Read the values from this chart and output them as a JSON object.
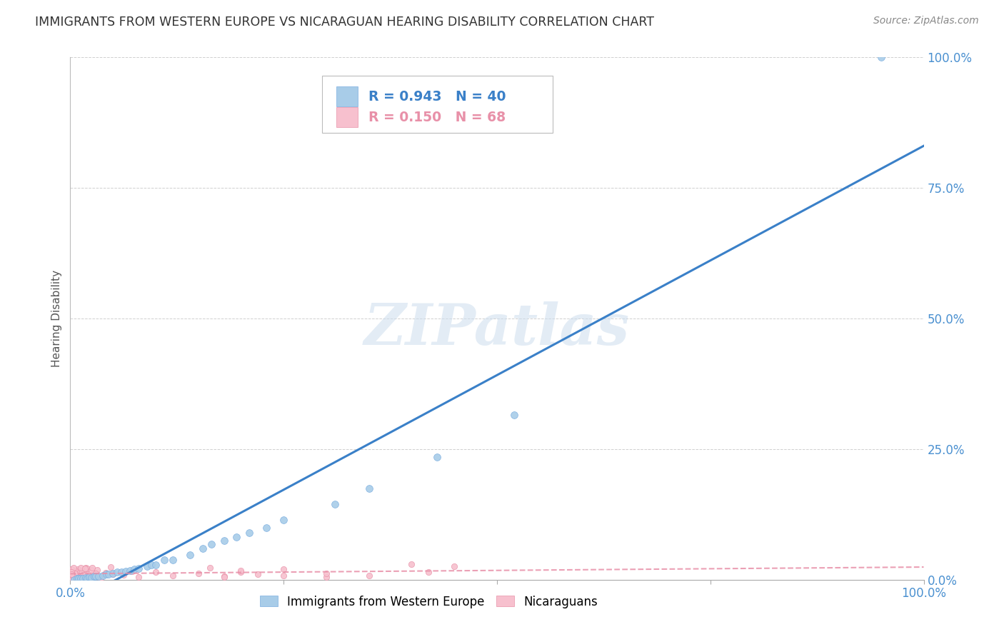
{
  "title": "IMMIGRANTS FROM WESTERN EUROPE VS NICARAGUAN HEARING DISABILITY CORRELATION CHART",
  "source": "Source: ZipAtlas.com",
  "ylabel": "Hearing Disability",
  "watermark": "ZIPatlas",
  "series1_label": "Immigrants from Western Europe",
  "series2_label": "Nicaraguans",
  "series1_R": 0.943,
  "series1_N": 40,
  "series2_R": 0.15,
  "series2_N": 68,
  "series1_color": "#a8cce8",
  "series1_edge_color": "#7aade0",
  "series1_line_color": "#3a80c8",
  "series2_color": "#f7c0ce",
  "series2_edge_color": "#e890a8",
  "series2_line_color": "#e890a8",
  "background_color": "#ffffff",
  "grid_color": "#d0d0d0",
  "ytick_color": "#4a90d0",
  "xtick_color": "#4a90d0",
  "title_color": "#333333",
  "xlim": [
    0,
    1.0
  ],
  "ylim": [
    0,
    1.0
  ],
  "xticks": [
    0.0,
    0.25,
    0.5,
    0.75,
    1.0
  ],
  "yticks": [
    0.0,
    0.25,
    0.5,
    0.75,
    1.0
  ],
  "xtick_labels": [
    "0.0%",
    "",
    "",
    "",
    "100.0%"
  ],
  "ytick_labels": [
    "0.0%",
    "25.0%",
    "50.0%",
    "75.0%",
    "100.0%"
  ],
  "legend_R1_text": "R = 0.943   N = 40",
  "legend_R2_text": "R = 0.150   N = 68"
}
